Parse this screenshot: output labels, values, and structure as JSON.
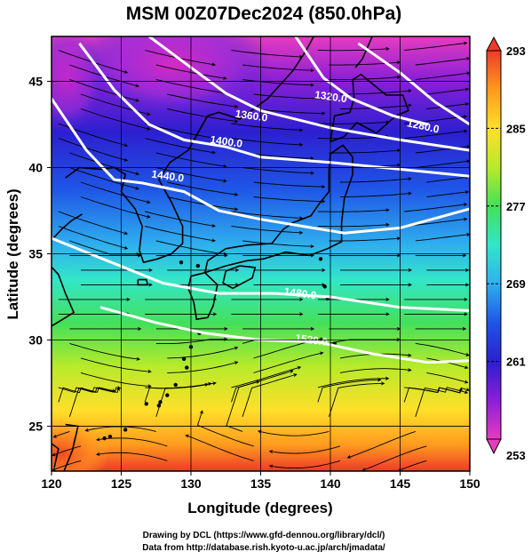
{
  "title": "MSM 00Z07Dec2024 (850.0hPa)",
  "xlabel": "Longitude (degrees)",
  "ylabel": "Latitude  (degrees)",
  "credit_line1": "Drawing by DCL (https://www.gfd-dennou.org/library/dcl/)",
  "credit_line2": "Data from http://database.rish.kyoto-u.ac.jp/arch/jmadata/",
  "x_ticks": [
    {
      "value": 120,
      "label": "120"
    },
    {
      "value": 125,
      "label": "125"
    },
    {
      "value": 130,
      "label": "130"
    },
    {
      "value": 135,
      "label": "135"
    },
    {
      "value": 140,
      "label": "140"
    },
    {
      "value": 145,
      "label": "145"
    },
    {
      "value": 150,
      "label": "150"
    }
  ],
  "y_ticks": [
    {
      "value": 25,
      "label": "25"
    },
    {
      "value": 30,
      "label": "30"
    },
    {
      "value": 35,
      "label": "35"
    },
    {
      "value": 40,
      "label": "40"
    },
    {
      "value": 45,
      "label": "45"
    }
  ],
  "xlim": [
    120,
    150
  ],
  "ylim": [
    22.4,
    47.6
  ],
  "colorbar": {
    "min": 253,
    "max": 293,
    "labels": [
      "293",
      "285",
      "277",
      "269",
      "261",
      "253"
    ],
    "label_values": [
      293,
      285,
      277,
      269,
      261,
      253
    ],
    "colors": [
      "#e63cc0",
      "#8a1fd6",
      "#2c1fd0",
      "#1f55e6",
      "#2fb0ee",
      "#33e6c8",
      "#44e05a",
      "#b8ea2a",
      "#ffdf2a",
      "#ff9a1e",
      "#ee3a2a"
    ]
  },
  "contours": [
    {
      "label": "1280.0",
      "pts": [
        [
          142.0,
          47.2
        ],
        [
          145.0,
          45.5
        ],
        [
          147.5,
          43.8
        ],
        [
          150.0,
          42.5
        ]
      ],
      "label_at": [
        146.6,
        42.2
      ]
    },
    {
      "label": "1320.0",
      "pts": [
        [
          137.5,
          47.6
        ],
        [
          139.5,
          45.2
        ],
        [
          141.5,
          44.0
        ],
        [
          144.5,
          43.0
        ],
        [
          147.0,
          42.5
        ]
      ],
      "label_at": [
        140.0,
        43.9
      ]
    },
    {
      "label": "1360.0",
      "pts": [
        [
          127.0,
          47.6
        ],
        [
          130.0,
          45.8
        ],
        [
          132.5,
          44.3
        ],
        [
          135.0,
          43.3
        ],
        [
          137.5,
          42.8
        ],
        [
          140.0,
          42.3
        ],
        [
          145.0,
          41.6
        ],
        [
          150.0,
          41.0
        ]
      ],
      "label_at": [
        134.3,
        42.8
      ]
    },
    {
      "label": "1400.0",
      "pts": [
        [
          122.0,
          47.2
        ],
        [
          124.5,
          44.5
        ],
        [
          127.0,
          42.5
        ],
        [
          129.5,
          41.6
        ],
        [
          132.5,
          41.2
        ],
        [
          135.0,
          40.6
        ],
        [
          140.0,
          40.3
        ],
        [
          145.0,
          39.9
        ],
        [
          150.0,
          39.5
        ]
      ],
      "label_at": [
        132.5,
        41.3
      ]
    },
    {
      "label": "1440.0",
      "pts": [
        [
          120.0,
          44.0
        ],
        [
          122.5,
          41.0
        ],
        [
          124.5,
          39.3
        ],
        [
          126.5,
          39.1
        ],
        [
          129.5,
          38.6
        ],
        [
          132.0,
          37.5
        ],
        [
          135.0,
          37.0
        ],
        [
          138.0,
          36.6
        ],
        [
          141.0,
          36.2
        ],
        [
          145.0,
          36.5
        ],
        [
          150.0,
          37.6
        ]
      ],
      "label_at": [
        128.3,
        39.3
      ]
    },
    {
      "label": "1480.0",
      "pts": [
        [
          120.0,
          35.9
        ],
        [
          124.0,
          34.6
        ],
        [
          128.0,
          33.3
        ],
        [
          132.0,
          32.7
        ],
        [
          136.0,
          32.7
        ],
        [
          140.0,
          32.5
        ],
        [
          145.0,
          31.9
        ],
        [
          150.0,
          31.7
        ]
      ],
      "label_at": [
        137.8,
        32.5
      ]
    },
    {
      "label": "1520.0",
      "pts": [
        [
          123.5,
          31.9
        ],
        [
          127.5,
          31.0
        ],
        [
          131.0,
          30.4
        ],
        [
          135.0,
          30.0
        ],
        [
          139.0,
          29.9
        ],
        [
          143.0,
          29.2
        ],
        [
          147.0,
          28.7
        ],
        [
          150.0,
          28.8
        ]
      ],
      "label_at": [
        138.6,
        29.8
      ]
    }
  ],
  "coastlines": [
    [
      [
        131.0,
        33.9
      ],
      [
        132.5,
        34.3
      ],
      [
        134.0,
        34.6
      ],
      [
        135.2,
        34.7
      ],
      [
        136.8,
        35.1
      ],
      [
        138.5,
        34.9
      ],
      [
        139.8,
        35.3
      ],
      [
        140.8,
        35.7
      ],
      [
        140.8,
        36.8
      ],
      [
        141.0,
        38.2
      ],
      [
        141.6,
        39.6
      ],
      [
        141.6,
        40.6
      ],
      [
        140.9,
        41.3
      ],
      [
        140.0,
        40.8
      ],
      [
        139.9,
        39.8
      ],
      [
        139.9,
        38.6
      ],
      [
        139.2,
        37.9
      ],
      [
        138.6,
        37.2
      ],
      [
        137.3,
        36.8
      ],
      [
        136.6,
        36.4
      ],
      [
        135.8,
        35.6
      ],
      [
        134.0,
        35.5
      ],
      [
        132.5,
        35.3
      ],
      [
        131.2,
        34.6
      ],
      [
        131.0,
        33.9
      ]
    ],
    [
      [
        130.0,
        33.7
      ],
      [
        131.0,
        33.9
      ],
      [
        131.9,
        33.2
      ],
      [
        131.6,
        32.0
      ],
      [
        131.2,
        31.3
      ],
      [
        130.4,
        31.2
      ],
      [
        130.2,
        32.2
      ],
      [
        129.8,
        33.0
      ],
      [
        130.0,
        33.7
      ]
    ],
    [
      [
        132.5,
        34.0
      ],
      [
        133.5,
        34.3
      ],
      [
        134.6,
        34.2
      ],
      [
        134.4,
        33.6
      ],
      [
        133.0,
        33.0
      ],
      [
        132.3,
        33.3
      ],
      [
        132.5,
        34.0
      ]
    ],
    [
      [
        140.0,
        41.5
      ],
      [
        141.0,
        41.8
      ],
      [
        141.9,
        42.6
      ],
      [
        143.3,
        42.0
      ],
      [
        144.7,
        43.0
      ],
      [
        145.6,
        43.3
      ],
      [
        145.2,
        44.2
      ],
      [
        144.0,
        44.2
      ],
      [
        142.2,
        45.4
      ],
      [
        141.6,
        45.1
      ],
      [
        141.7,
        44.0
      ],
      [
        141.4,
        43.2
      ],
      [
        140.3,
        43.0
      ],
      [
        140.0,
        41.5
      ]
    ],
    [
      [
        141.8,
        45.8
      ],
      [
        142.3,
        46.3
      ],
      [
        143.0,
        47.6
      ]
    ],
    [
      [
        121.0,
        25.1
      ],
      [
        121.9,
        25.0
      ],
      [
        121.5,
        23.6
      ],
      [
        120.9,
        22.4
      ]
    ],
    [
      [
        120.0,
        24.0
      ],
      [
        120.5,
        23.7
      ],
      [
        120.2,
        22.6
      ]
    ],
    [
      [
        122.2,
        37.3
      ],
      [
        121.4,
        36.9
      ],
      [
        120.7,
        36.4
      ],
      [
        120.0,
        35.8
      ]
    ],
    [
      [
        121.0,
        39.4
      ],
      [
        122.0,
        40.0
      ],
      [
        123.5,
        39.9
      ],
      [
        124.5,
        40.0
      ],
      [
        125.3,
        39.6
      ],
      [
        125.0,
        38.6
      ],
      [
        126.0,
        37.6
      ],
      [
        126.5,
        36.6
      ],
      [
        126.3,
        35.2
      ],
      [
        126.6,
        34.5
      ],
      [
        127.6,
        34.7
      ],
      [
        128.6,
        35.0
      ],
      [
        129.4,
        35.6
      ],
      [
        129.4,
        36.6
      ],
      [
        128.6,
        38.0
      ],
      [
        127.7,
        39.3
      ],
      [
        128.5,
        40.3
      ],
      [
        129.8,
        41.0
      ],
      [
        130.7,
        42.3
      ],
      [
        131.2,
        43.0
      ],
      [
        132.0,
        43.2
      ],
      [
        133.5,
        42.8
      ],
      [
        135.5,
        44.0
      ],
      [
        137.3,
        45.6
      ],
      [
        138.2,
        46.7
      ],
      [
        138.8,
        47.6
      ]
    ],
    [
      [
        120.0,
        30.8
      ],
      [
        121.6,
        31.6
      ],
      [
        121.0,
        32.7
      ],
      [
        120.5,
        33.8
      ],
      [
        119.8,
        34.4
      ]
    ],
    [
      [
        126.2,
        33.5
      ],
      [
        126.8,
        33.5
      ],
      [
        126.9,
        33.2
      ],
      [
        126.2,
        33.2
      ],
      [
        126.2,
        33.5
      ]
    ]
  ],
  "islands": [
    [
      129.7,
      28.4
    ],
    [
      128.9,
      27.4
    ],
    [
      128.3,
      26.8
    ],
    [
      127.8,
      26.4
    ],
    [
      127.7,
      26.2
    ],
    [
      126.8,
      26.3
    ],
    [
      125.3,
      24.8
    ],
    [
      124.2,
      24.4
    ],
    [
      123.8,
      24.3
    ],
    [
      130.6,
      30.4
    ],
    [
      130.0,
      29.6
    ],
    [
      129.5,
      28.9
    ],
    [
      139.6,
      33.1
    ],
    [
      139.8,
      32.4
    ],
    [
      140.3,
      29.8
    ],
    [
      139.3,
      34.7
    ],
    [
      130.5,
      34.3
    ],
    [
      129.3,
      34.5
    ]
  ]
}
